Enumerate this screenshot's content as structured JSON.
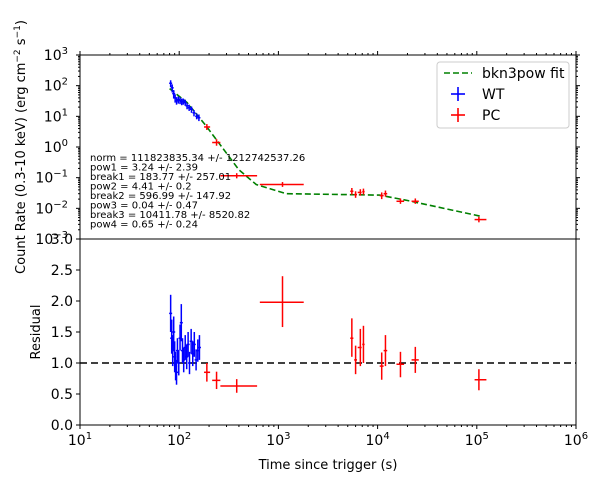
{
  "chart_data": [
    {
      "type": "scatter",
      "xscale": "log",
      "yscale": "log",
      "xlim": [
        10,
        1000000
      ],
      "ylim": [
        0.001,
        1000
      ],
      "ylabel": "Count Rate (0.3-10 keV) (erg cm$^{-2}$ s$^{-1}$)",
      "ylabel_parts": {
        "main": "Count Rate (0.3-10 keV) (erg cm",
        "sup1": "−2",
        "mid": " s",
        "sup2": "−1",
        "end": ")"
      },
      "y_ticks": [
        {
          "v": 0.001,
          "base": "10",
          "exp": "−3"
        },
        {
          "v": 0.01,
          "base": "10",
          "exp": "−2"
        },
        {
          "v": 0.1,
          "base": "10",
          "exp": "−1"
        },
        {
          "v": 1,
          "base": "10",
          "exp": "0"
        },
        {
          "v": 10,
          "base": "10",
          "exp": "1"
        },
        {
          "v": 100,
          "base": "10",
          "exp": "2"
        },
        {
          "v": 1000,
          "base": "10",
          "exp": "3"
        }
      ],
      "legend": {
        "position": "top-right",
        "entries": [
          "bkn3pow fit",
          "WT",
          "PC"
        ]
      },
      "colors": {
        "fit": "#008000",
        "WT": "#0000ff",
        "PC": "#ff0000"
      },
      "annotations": [
        "norm = 111823835.34 +/- 1212742537.26",
        "pow1 = 3.24 +/- 2.39",
        "break1 = 183.77 +/- 257.01",
        "pow2 = 4.41 +/- 0.2",
        "break2 = 596.99 +/- 147.92",
        "pow3 = 0.04 +/- 0.47",
        "break3 = 10411.78 +/- 8520.82",
        "pow4 = 0.65 +/- 0.24"
      ],
      "series": [
        {
          "name": "bkn3pow fit",
          "style": "dashed",
          "points": [
            [
              80,
              80
            ],
            [
              120,
              28
            ],
            [
              183.77,
              5.2
            ],
            [
              400,
              0.18
            ],
            [
              596.99,
              0.06
            ],
            [
              1200,
              0.03
            ],
            [
              10411.78,
              0.027
            ],
            [
              20000,
              0.018
            ],
            [
              50000,
              0.0095
            ],
            [
              110000,
              0.0055
            ]
          ]
        },
        {
          "name": "WT",
          "points": [
            {
              "x": 82,
              "y": 120,
              "ylo": 90,
              "yhi": 150
            },
            {
              "x": 85,
              "y": 85,
              "ylo": 60,
              "yhi": 110
            },
            {
              "x": 88,
              "y": 55,
              "ylo": 38,
              "yhi": 72
            },
            {
              "x": 91,
              "y": 40,
              "ylo": 28,
              "yhi": 52
            },
            {
              "x": 94,
              "y": 32,
              "ylo": 24,
              "yhi": 42
            },
            {
              "x": 98,
              "y": 35,
              "ylo": 26,
              "yhi": 45
            },
            {
              "x": 102,
              "y": 33,
              "ylo": 25,
              "yhi": 42
            },
            {
              "x": 106,
              "y": 30,
              "ylo": 23,
              "yhi": 38
            },
            {
              "x": 110,
              "y": 31,
              "ylo": 24,
              "yhi": 38
            },
            {
              "x": 115,
              "y": 28,
              "ylo": 22,
              "yhi": 35
            },
            {
              "x": 120,
              "y": 22,
              "ylo": 17,
              "yhi": 27
            },
            {
              "x": 126,
              "y": 19,
              "ylo": 15,
              "yhi": 24
            },
            {
              "x": 133,
              "y": 17,
              "ylo": 13,
              "yhi": 21
            },
            {
              "x": 141,
              "y": 13,
              "ylo": 10,
              "yhi": 16
            },
            {
              "x": 150,
              "y": 10,
              "ylo": 8,
              "yhi": 12.5
            },
            {
              "x": 158,
              "y": 9,
              "ylo": 7,
              "yhi": 11.5
            }
          ]
        },
        {
          "name": "PC",
          "points": [
            {
              "x": 190,
              "xlo": 178,
              "xhi": 205,
              "y": 4.5,
              "ylo": 3.6,
              "yhi": 5.6
            },
            {
              "x": 238,
              "xlo": 215,
              "xhi": 260,
              "y": 1.4,
              "ylo": 1.1,
              "yhi": 1.8
            },
            {
              "x": 380,
              "xlo": 260,
              "xhi": 610,
              "y": 0.115,
              "ylo": 0.095,
              "yhi": 0.14
            },
            {
              "x": 1100,
              "xlo": 650,
              "xhi": 1800,
              "y": 0.06,
              "ylo": 0.05,
              "yhi": 0.072
            },
            {
              "x": 5500,
              "xlo": 5300,
              "xhi": 5700,
              "y": 0.036,
              "ylo": 0.028,
              "yhi": 0.046
            },
            {
              "x": 6000,
              "xlo": 5800,
              "xhi": 6200,
              "y": 0.028,
              "ylo": 0.022,
              "yhi": 0.036
            },
            {
              "x": 6700,
              "xlo": 6300,
              "xhi": 6900,
              "y": 0.033,
              "ylo": 0.026,
              "yhi": 0.042
            },
            {
              "x": 7200,
              "xlo": 7000,
              "xhi": 7400,
              "y": 0.035,
              "ylo": 0.028,
              "yhi": 0.044
            },
            {
              "x": 11000,
              "xlo": 10500,
              "xhi": 11500,
              "y": 0.026,
              "ylo": 0.02,
              "yhi": 0.033
            },
            {
              "x": 12000,
              "xlo": 11500,
              "xhi": 12500,
              "y": 0.03,
              "ylo": 0.024,
              "yhi": 0.038
            },
            {
              "x": 17000,
              "xlo": 15500,
              "xhi": 18500,
              "y": 0.017,
              "ylo": 0.014,
              "yhi": 0.021
            },
            {
              "x": 24000,
              "xlo": 22000,
              "xhi": 26000,
              "y": 0.017,
              "ylo": 0.014,
              "yhi": 0.021
            },
            {
              "x": 105000,
              "xlo": 95000,
              "xhi": 125000,
              "y": 0.0043,
              "ylo": 0.0035,
              "yhi": 0.0053
            }
          ]
        }
      ]
    },
    {
      "type": "scatter",
      "xscale": "log",
      "xlim": [
        10,
        1000000
      ],
      "ylim": [
        0,
        3.0
      ],
      "ylabel": "Residual",
      "xlabel": "Time since trigger (s)",
      "y_ticks": [
        "0.0",
        "0.5",
        "1.0",
        "1.5",
        "2.0",
        "2.5",
        "3.0"
      ],
      "x_ticks": [
        {
          "v": 10,
          "base": "10",
          "exp": "1"
        },
        {
          "v": 100,
          "base": "10",
          "exp": "2"
        },
        {
          "v": 1000,
          "base": "10",
          "exp": "3"
        },
        {
          "v": 10000,
          "base": "10",
          "exp": "4"
        },
        {
          "v": 100000,
          "base": "10",
          "exp": "5"
        },
        {
          "v": 1000000,
          "base": "10",
          "exp": "6"
        }
      ],
      "reference_line": 1.0,
      "series": [
        {
          "name": "WT",
          "points": [
            {
              "x": 82,
              "y": 1.8,
              "ylo": 1.5,
              "yhi": 2.1
            },
            {
              "x": 84,
              "y": 1.4,
              "ylo": 1.15,
              "yhi": 1.7
            },
            {
              "x": 86,
              "y": 1.2,
              "ylo": 0.95,
              "yhi": 1.45
            },
            {
              "x": 88,
              "y": 1.5,
              "ylo": 1.2,
              "yhi": 1.75
            },
            {
              "x": 90,
              "y": 1.1,
              "ylo": 0.85,
              "yhi": 1.35
            },
            {
              "x": 92,
              "y": 0.95,
              "ylo": 0.72,
              "yhi": 1.18
            },
            {
              "x": 94,
              "y": 0.85,
              "ylo": 0.65,
              "yhi": 1.05
            },
            {
              "x": 96,
              "y": 1.2,
              "ylo": 1.0,
              "yhi": 1.4
            },
            {
              "x": 99,
              "y": 1.0,
              "ylo": 0.8,
              "yhi": 1.2
            },
            {
              "x": 102,
              "y": 1.4,
              "ylo": 1.2,
              "yhi": 1.62
            },
            {
              "x": 105,
              "y": 1.65,
              "ylo": 1.35,
              "yhi": 1.95
            },
            {
              "x": 108,
              "y": 1.2,
              "ylo": 1.0,
              "yhi": 1.4
            },
            {
              "x": 111,
              "y": 1.05,
              "ylo": 0.85,
              "yhi": 1.25
            },
            {
              "x": 115,
              "y": 1.25,
              "ylo": 1.05,
              "yhi": 1.45
            },
            {
              "x": 119,
              "y": 1.1,
              "ylo": 0.9,
              "yhi": 1.3
            },
            {
              "x": 123,
              "y": 1.3,
              "ylo": 1.1,
              "yhi": 1.5
            },
            {
              "x": 127,
              "y": 1.0,
              "ylo": 0.82,
              "yhi": 1.18
            },
            {
              "x": 132,
              "y": 1.35,
              "ylo": 1.15,
              "yhi": 1.55
            },
            {
              "x": 137,
              "y": 1.15,
              "ylo": 0.95,
              "yhi": 1.35
            },
            {
              "x": 142,
              "y": 1.3,
              "ylo": 1.1,
              "yhi": 1.5
            },
            {
              "x": 148,
              "y": 1.05,
              "ylo": 0.88,
              "yhi": 1.22
            },
            {
              "x": 154,
              "y": 1.2,
              "ylo": 1.02,
              "yhi": 1.38
            },
            {
              "x": 160,
              "y": 1.25,
              "ylo": 1.05,
              "yhi": 1.45
            }
          ]
        },
        {
          "name": "PC",
          "points": [
            {
              "x": 190,
              "xlo": 178,
              "xhi": 205,
              "y": 0.85,
              "ylo": 0.7,
              "yhi": 1.0
            },
            {
              "x": 238,
              "xlo": 215,
              "xhi": 260,
              "y": 0.72,
              "ylo": 0.58,
              "yhi": 0.86
            },
            {
              "x": 380,
              "xlo": 260,
              "xhi": 610,
              "y": 0.63,
              "ylo": 0.52,
              "yhi": 0.74
            },
            {
              "x": 1100,
              "xlo": 650,
              "xhi": 1800,
              "y": 1.98,
              "ylo": 1.58,
              "yhi": 2.4
            },
            {
              "x": 5500,
              "xlo": 5300,
              "xhi": 5700,
              "y": 1.4,
              "ylo": 1.1,
              "yhi": 1.72
            },
            {
              "x": 6000,
              "xlo": 5800,
              "xhi": 6200,
              "y": 1.05,
              "ylo": 0.82,
              "yhi": 1.28
            },
            {
              "x": 6700,
              "xlo": 6300,
              "xhi": 6900,
              "y": 1.25,
              "ylo": 0.95,
              "yhi": 1.55
            },
            {
              "x": 7200,
              "xlo": 7000,
              "xhi": 7400,
              "y": 1.3,
              "ylo": 1.0,
              "yhi": 1.6
            },
            {
              "x": 11000,
              "xlo": 10500,
              "xhi": 11500,
              "y": 0.95,
              "ylo": 0.73,
              "yhi": 1.17
            },
            {
              "x": 12000,
              "xlo": 11500,
              "xhi": 12500,
              "y": 1.2,
              "ylo": 0.95,
              "yhi": 1.45
            },
            {
              "x": 17000,
              "xlo": 15500,
              "xhi": 18500,
              "y": 0.98,
              "ylo": 0.77,
              "yhi": 1.18
            },
            {
              "x": 24000,
              "xlo": 22000,
              "xhi": 26000,
              "y": 1.05,
              "ylo": 0.84,
              "yhi": 1.26
            },
            {
              "x": 105000,
              "xlo": 95000,
              "xhi": 125000,
              "y": 0.73,
              "ylo": 0.56,
              "yhi": 0.9
            }
          ]
        }
      ]
    }
  ]
}
